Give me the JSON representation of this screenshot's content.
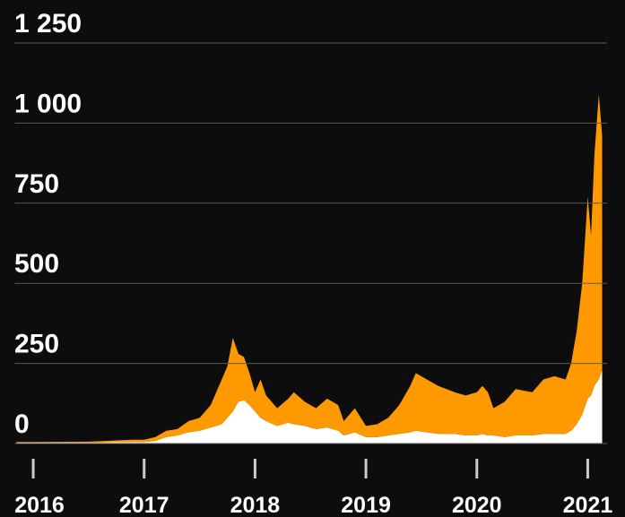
{
  "chart_data": {
    "type": "stacked_area",
    "x": [
      2015.85,
      2016.0,
      2016.5,
      2016.9,
      2017.0,
      2017.1,
      2017.2,
      2017.3,
      2017.4,
      2017.5,
      2017.6,
      2017.7,
      2017.75,
      2017.8,
      2017.85,
      2017.9,
      2017.95,
      2018.0,
      2018.05,
      2018.1,
      2018.2,
      2018.3,
      2018.35,
      2018.45,
      2018.55,
      2018.65,
      2018.75,
      2018.8,
      2018.9,
      2019.0,
      2019.1,
      2019.2,
      2019.3,
      2019.4,
      2019.45,
      2019.55,
      2019.65,
      2019.8,
      2019.9,
      2020.0,
      2020.05,
      2020.1,
      2020.15,
      2020.25,
      2020.35,
      2020.5,
      2020.6,
      2020.7,
      2020.8,
      2020.85,
      2020.9,
      2020.95,
      2021.0,
      2021.03,
      2021.06,
      2021.1,
      2021.13
    ],
    "series": [
      {
        "color": "#ffffff",
        "values": [
          3,
          3,
          3,
          5,
          5,
          8,
          20,
          25,
          35,
          40,
          50,
          60,
          80,
          100,
          130,
          135,
          120,
          100,
          80,
          70,
          55,
          65,
          60,
          55,
          45,
          50,
          40,
          25,
          35,
          20,
          20,
          25,
          30,
          35,
          40,
          35,
          30,
          30,
          25,
          25,
          30,
          25,
          25,
          20,
          25,
          25,
          30,
          30,
          30,
          40,
          60,
          90,
          140,
          150,
          180,
          200,
          230
        ]
      },
      {
        "color": "#ff9900",
        "values": [
          2,
          2,
          3,
          7,
          7,
          12,
          20,
          20,
          35,
          40,
          70,
          140,
          160,
          230,
          150,
          135,
          100,
          60,
          120,
          80,
          55,
          75,
          100,
          75,
          65,
          90,
          80,
          45,
          75,
          35,
          40,
          55,
          90,
          145,
          180,
          165,
          150,
          130,
          125,
          135,
          150,
          135,
          85,
          110,
          145,
          135,
          170,
          180,
          170,
          210,
          290,
          410,
          630,
          500,
          720,
          890,
          730
        ]
      }
    ],
    "xlim": [
      2015.85,
      2021.15
    ],
    "xticks": [
      2016,
      2017,
      2018,
      2019,
      2020,
      2021
    ],
    "ylim": [
      0,
      1250
    ],
    "yticks": [
      0,
      250,
      500,
      750,
      {
        "value": 1000,
        "label": "1 000"
      },
      {
        "value": 1250,
        "label": "1 250"
      }
    ],
    "grid": true
  }
}
